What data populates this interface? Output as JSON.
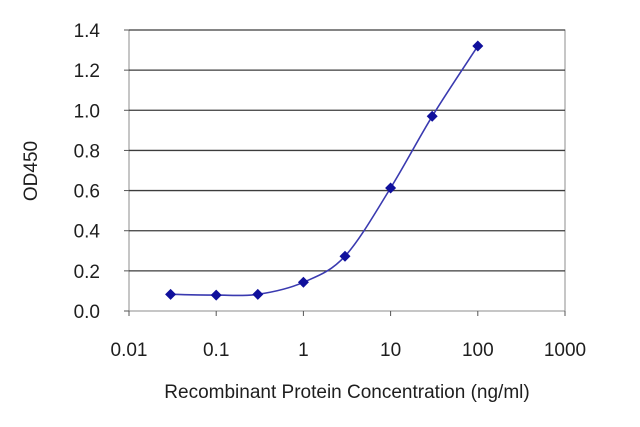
{
  "chart_data": {
    "type": "scatter",
    "xlabel": "Recombinant Protein Concentration (ng/ml)",
    "ylabel": "OD450",
    "x_scale": "log",
    "xlim": [
      0.01,
      1000
    ],
    "ylim": [
      0,
      1.4
    ],
    "x_ticks": [
      "0.01",
      "0.1",
      "1",
      "10",
      "100",
      "1000"
    ],
    "y_ticks": [
      "0.0",
      "0.2",
      "0.4",
      "0.6",
      "0.8",
      "1.0",
      "1.2",
      "1.4"
    ],
    "grid": "horizontal",
    "series": [
      {
        "x": [
          0.03,
          0.1,
          0.3,
          1,
          3,
          10,
          30,
          100
        ],
        "y": [
          0.083,
          0.079,
          0.083,
          0.143,
          0.273,
          0.613,
          0.97,
          1.32
        ]
      }
    ],
    "colors": {
      "marker": "#10109c",
      "line": "#3a3ab0",
      "grid": "#3c3c3c",
      "frame": "#8c8c8c"
    }
  }
}
